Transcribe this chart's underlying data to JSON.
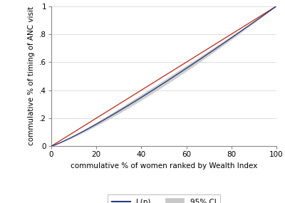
{
  "xlabel": "commulative % of women ranked by Wealth Index",
  "ylabel": "commulative % of timing of ANC visit",
  "xlim": [
    0,
    100
  ],
  "ylim": [
    0,
    1
  ],
  "xticks": [
    0,
    20,
    40,
    60,
    80,
    100
  ],
  "yticks": [
    0,
    0.2,
    0.4,
    0.6,
    0.8,
    1.0
  ],
  "ytick_labels": [
    "0",
    ".2",
    ".4",
    ".6",
    ".8",
    "1"
  ],
  "line_of_equality_color": "#c0392b",
  "lorenz_color": "#2c3e7a",
  "ci_color": "#c8c8c8",
  "ci_alpha": 0.85,
  "background_color": "#ffffff",
  "legend_labels": [
    "L(p)",
    "95% CI"
  ],
  "grid_color": "#d8d8d8",
  "lorenz_exponent": 1.15,
  "ci_max_half": 0.022,
  "font_size": 7.5,
  "label_fontsize": 7.5
}
